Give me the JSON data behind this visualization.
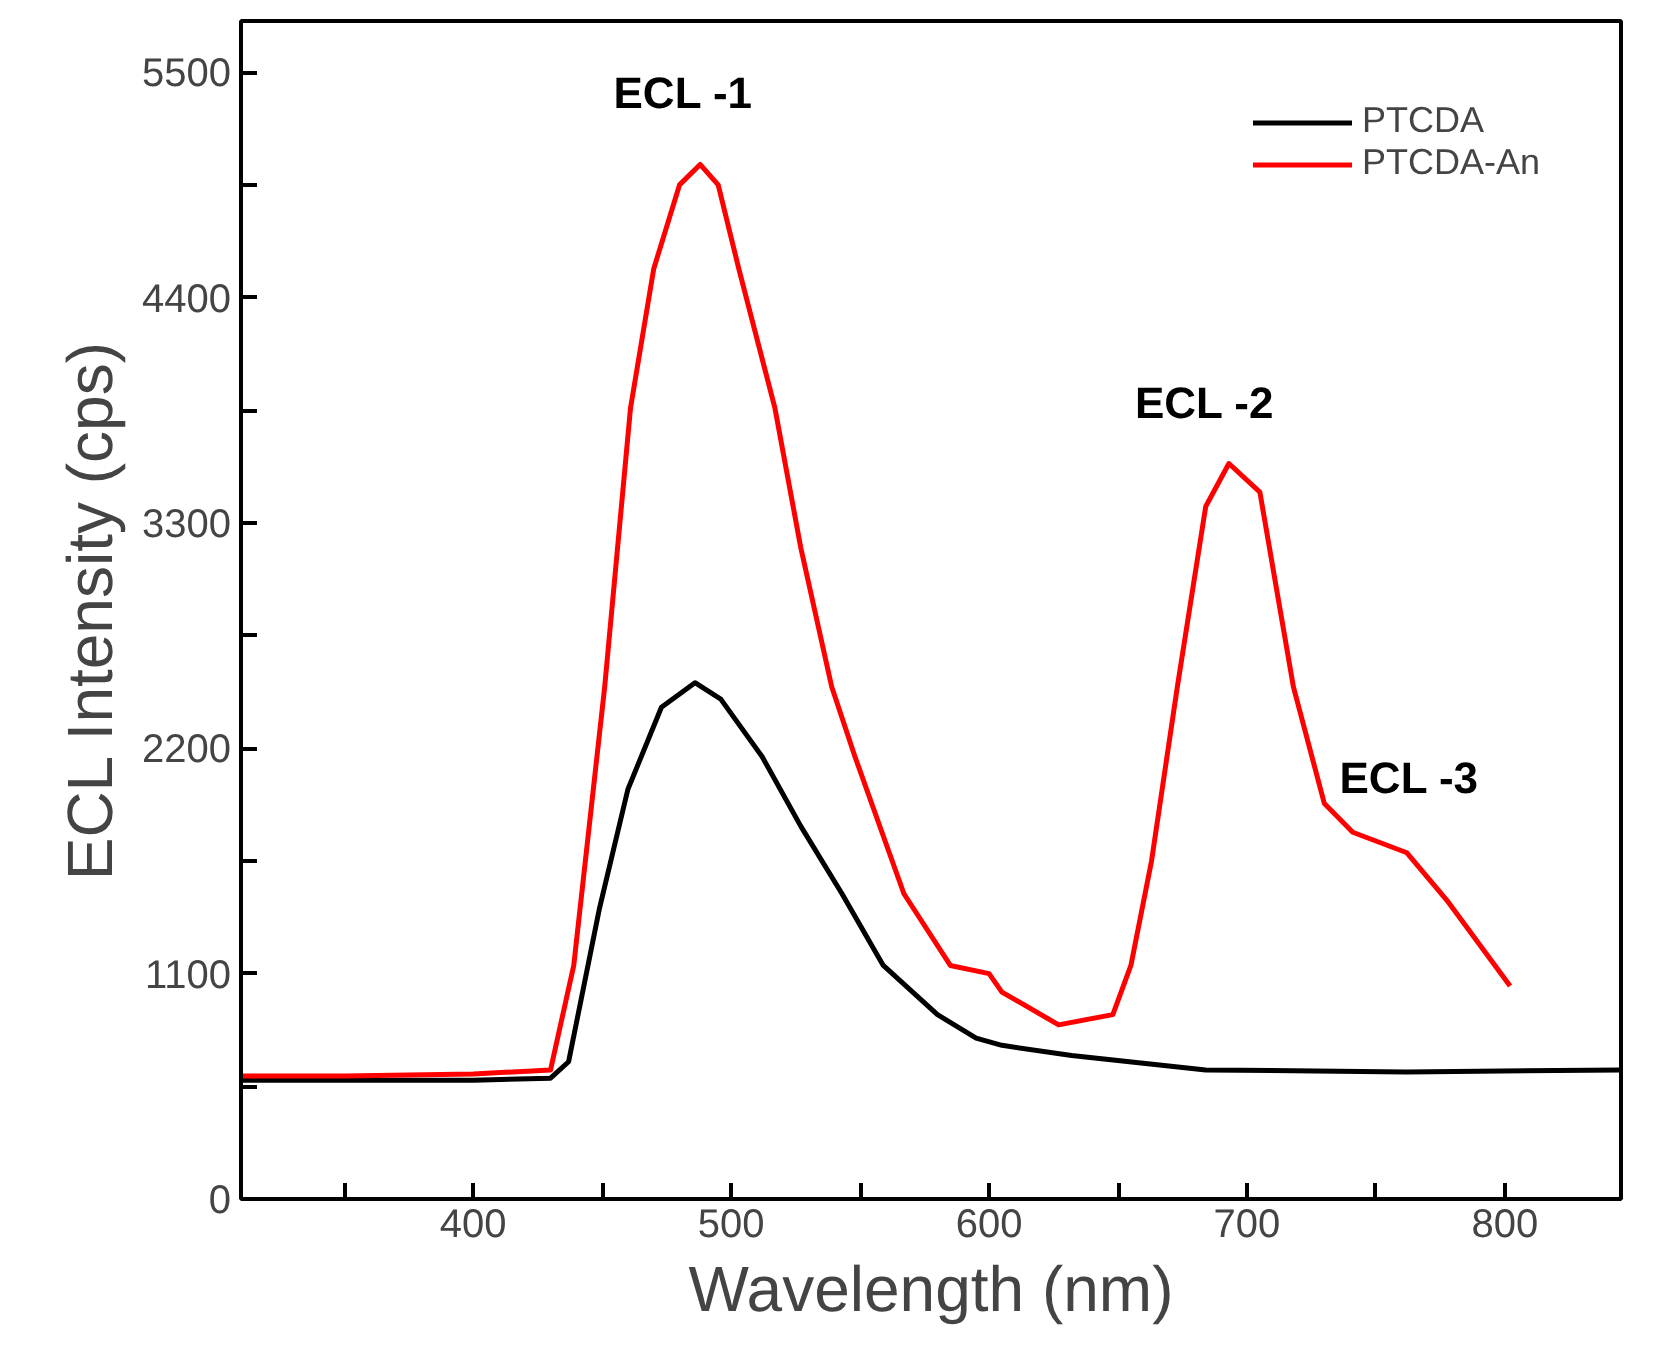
{
  "chart_data": {
    "type": "line",
    "xlabel": "Wavelength (nm)",
    "ylabel": "ECL Intensity (cps)",
    "xlim": [
      310,
      845
    ],
    "ylim": [
      0,
      5750
    ],
    "xticks": [
      {
        "value": 350,
        "label": null
      },
      400,
      {
        "value": 450,
        "label": null
      },
      500,
      {
        "value": 550,
        "label": null
      },
      600,
      {
        "value": 650,
        "label": null
      },
      700,
      {
        "value": 750,
        "label": null
      },
      800
    ],
    "yticks": [
      0,
      {
        "value": 550,
        "label": null
      },
      1100,
      {
        "value": 1650,
        "label": null
      },
      2200,
      {
        "value": 2750,
        "label": null
      },
      3300,
      {
        "value": 3850,
        "label": null
      },
      4400,
      {
        "value": 4950,
        "label": null
      },
      5500
    ],
    "grid": false,
    "legend": "top right",
    "marker": "none",
    "line_style": "solid",
    "series": [
      {
        "name": "PTCDA",
        "color": "#000000",
        "x": [
          310,
          350,
          400,
          430,
          437,
          449,
          460,
          473,
          486,
          496,
          512,
          527,
          543,
          559,
          580,
          595,
          605,
          632,
          684,
          762,
          845
        ],
        "values": [
          580,
          580,
          580,
          590,
          670,
          1420,
          2000,
          2400,
          2520,
          2440,
          2160,
          1820,
          1490,
          1140,
          900,
          785,
          750,
          700,
          630,
          620,
          630
        ]
      },
      {
        "name": "PTCDA-An",
        "color": "#ff0000",
        "x": [
          310,
          350,
          400,
          430,
          439,
          451,
          461,
          470,
          480,
          488,
          495,
          503,
          517,
          527,
          539,
          548,
          567,
          585,
          600,
          605,
          627,
          648,
          655,
          663,
          673,
          684,
          693,
          705,
          718,
          730,
          741,
          762,
          778,
          802
        ],
        "values": [
          600,
          600,
          610,
          630,
          1140,
          2500,
          3860,
          4540,
          4950,
          5050,
          4950,
          4540,
          3860,
          3180,
          2500,
          2160,
          1490,
          1140,
          1100,
          1010,
          850,
          900,
          1140,
          1650,
          2500,
          3380,
          3590,
          3450,
          2500,
          1930,
          1790,
          1690,
          1450,
          1040
        ]
      }
    ],
    "annotations": [
      "ECL -1",
      "ECL -2",
      "ECL -3"
    ]
  }
}
